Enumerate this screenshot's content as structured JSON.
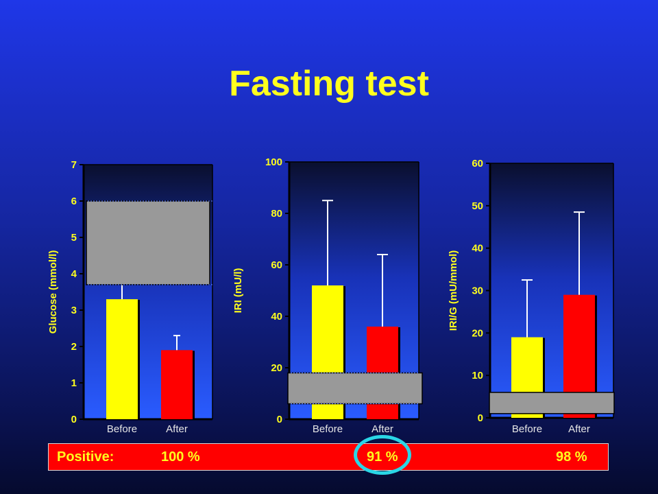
{
  "title": "Fasting test",
  "colors": {
    "before": "#ffff00",
    "after": "#ff0000",
    "normal_range": "#999999",
    "text_yellow": "#ffff1e",
    "highlight": "#2ad6e6"
  },
  "categories": [
    "Before",
    "After"
  ],
  "chart_data": [
    {
      "type": "bar",
      "ylabel": "Glucose (mmol/l)",
      "ylim": [
        0,
        7
      ],
      "yticks": [
        0,
        1,
        2,
        3,
        4,
        5,
        6,
        7
      ],
      "categories": [
        "Before",
        "After"
      ],
      "values": [
        3.3,
        1.9
      ],
      "error_upper": [
        4.15,
        2.3
      ],
      "normal_range": [
        3.7,
        6.0
      ],
      "grid": false
    },
    {
      "type": "bar",
      "ylabel": "IRI (mU/l)",
      "ylim": [
        0,
        100
      ],
      "yticks": [
        0,
        20,
        40,
        60,
        80,
        100
      ],
      "categories": [
        "Before",
        "After"
      ],
      "values": [
        52,
        36
      ],
      "error_upper": [
        85,
        64
      ],
      "normal_range": [
        6,
        18
      ],
      "grid": false
    },
    {
      "type": "bar",
      "ylabel": "IRI/G (mU/mmol)",
      "ylim": [
        0,
        60
      ],
      "yticks": [
        0,
        10,
        20,
        30,
        40,
        50,
        60
      ],
      "categories": [
        "Before",
        "After"
      ],
      "values": [
        19,
        29
      ],
      "error_upper": [
        32.5,
        48.5
      ],
      "normal_range": [
        1,
        6
      ],
      "grid": false
    }
  ],
  "positive": {
    "label": "Positive:",
    "values": [
      "100 %",
      "91 %",
      "98 %"
    ]
  }
}
